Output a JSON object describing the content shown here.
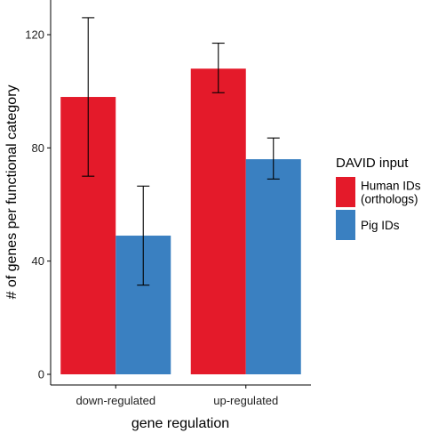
{
  "chart_data": {
    "type": "bar",
    "xlabel": "gene regulation",
    "ylabel": "# of genes per functional category",
    "categories": [
      "down-regulated",
      "up-regulated"
    ],
    "ylim": [
      0,
      133
    ],
    "yticks": [
      0,
      40,
      80,
      120
    ],
    "grid": false,
    "legend": {
      "title": "DAVID input",
      "placement": "right",
      "entries": [
        {
          "label_lines": [
            "Human IDs",
            "(orthologs)"
          ]
        },
        {
          "label_lines": [
            "Pig IDs"
          ]
        }
      ]
    },
    "series": [
      {
        "name": "Human IDs (orthologs)",
        "color": "#e41a2a",
        "values": [
          98,
          108
        ],
        "error_low": [
          70,
          99.5
        ],
        "error_high": [
          126,
          117
        ]
      },
      {
        "name": "Pig IDs",
        "color": "#3a80c1",
        "values": [
          49,
          76
        ],
        "error_low": [
          31.5,
          69
        ],
        "error_high": [
          66.5,
          83.5
        ]
      }
    ]
  }
}
